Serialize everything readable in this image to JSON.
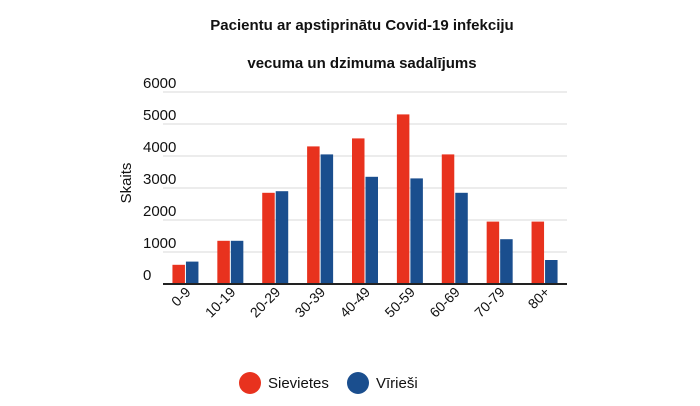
{
  "chart_data": {
    "type": "bar",
    "title_line1": "Pacientu ar apstiprinātu Covid-19 infekciju",
    "title_line2": "vecuma un dzimuma sadalījums",
    "ylabel": "Skaits",
    "xlabel": "",
    "ylim": [
      0,
      6000
    ],
    "yticks": [
      "0",
      "1000",
      "2000",
      "3000",
      "4000",
      "5000",
      "6000"
    ],
    "grid": true,
    "legend_position": "bottom-center",
    "categories": [
      "0-9",
      "10-19",
      "20-29",
      "30-39",
      "40-49",
      "50-59",
      "60-69",
      "70-79",
      "80+"
    ],
    "series": [
      {
        "name": "Sievietes",
        "color": "#e8321e",
        "values": [
          600,
          1350,
          2850,
          4300,
          4550,
          5300,
          4050,
          1950,
          1950
        ]
      },
      {
        "name": "Vīrieši",
        "color": "#1a4e8e",
        "values": [
          700,
          1350,
          2900,
          4050,
          3350,
          3300,
          2850,
          1400,
          750
        ]
      }
    ]
  }
}
